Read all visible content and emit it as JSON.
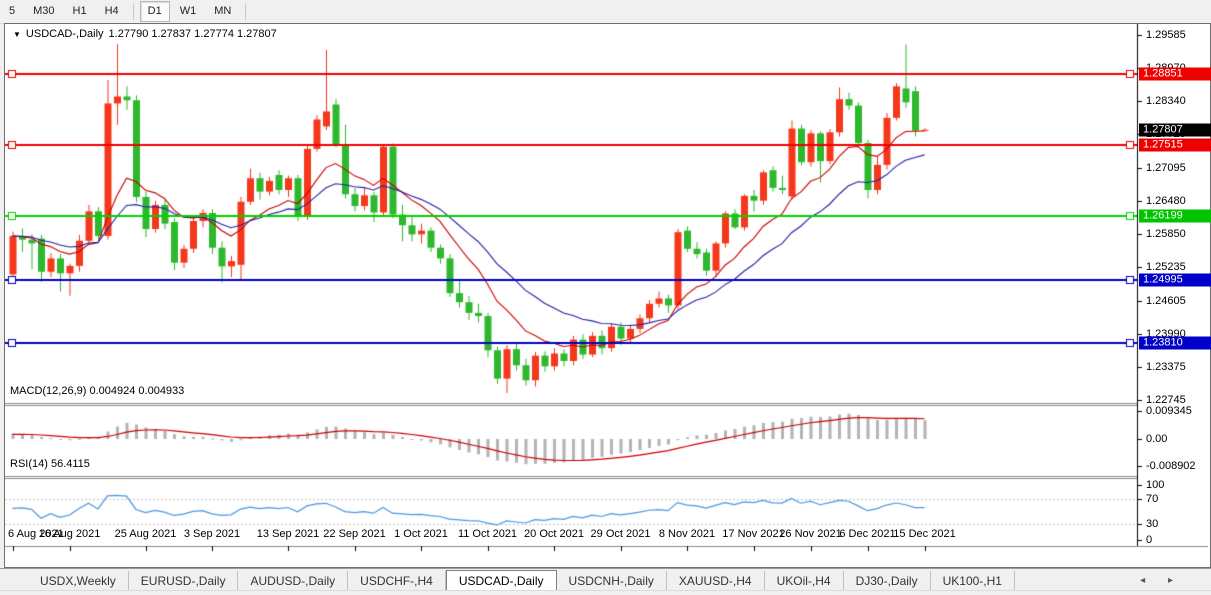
{
  "toolbar": {
    "timeframes": [
      "5",
      "M30",
      "H1",
      "H4",
      "D1",
      "W1",
      "MN"
    ],
    "active_timeframe": "D1"
  },
  "chart": {
    "title_symbol": "USDCAD-,Daily",
    "title_quote": "1.27790 1.27837 1.27774 1.27807",
    "dropdown_icon": "▼"
  },
  "macd": {
    "label_text": "MACD(12,26,9) 0.004924 0.004933",
    "ticks": [
      {
        "text": "0.009345",
        "value": 0.009345
      },
      {
        "text": "0.00",
        "value": 0.0
      },
      {
        "text": "-0.008902",
        "value": -0.008902
      }
    ]
  },
  "rsi": {
    "label_text": "RSI(14) 56.4115",
    "ticks": [
      {
        "text": "100",
        "value": 100
      },
      {
        "text": "70",
        "value": 70
      },
      {
        "text": "30",
        "value": 30
      },
      {
        "text": "0",
        "value": 0
      }
    ],
    "dashed_levels": [
      70,
      30
    ]
  },
  "price_axis": {
    "ticks": [
      "1.29585",
      "1.28970",
      "1.28340",
      "1.27725",
      "1.27095",
      "1.26480",
      "1.25850",
      "1.25235",
      "1.24605",
      "1.23990",
      "1.23375",
      "1.22745"
    ],
    "tags": [
      {
        "text": "1.28851",
        "value": 1.28851,
        "color": "#ee0000"
      },
      {
        "text": "1.27515",
        "value": 1.27515,
        "color": "#ee0000"
      },
      {
        "text": "1.26199",
        "value": 1.26199,
        "color": "#00c400"
      },
      {
        "text": "1.24995",
        "value": 1.24995,
        "color": "#0000c8"
      },
      {
        "text": "1.23810",
        "value": 1.2381,
        "color": "#0000c8"
      },
      {
        "text": "1.27807",
        "value": 1.27807,
        "color": "#000000"
      }
    ]
  },
  "date_axis": {
    "labels": [
      {
        "text": "6 Aug 2021",
        "i": 0
      },
      {
        "text": "16 Aug 2021",
        "i": 6
      },
      {
        "text": "25 Aug 2021",
        "i": 14
      },
      {
        "text": "3 Sep 2021",
        "i": 21
      },
      {
        "text": "13 Sep 2021",
        "i": 29
      },
      {
        "text": "22 Sep 2021",
        "i": 36
      },
      {
        "text": "1 Oct 2021",
        "i": 43
      },
      {
        "text": "11 Oct 2021",
        "i": 50
      },
      {
        "text": "20 Oct 2021",
        "i": 57
      },
      {
        "text": "29 Oct 2021",
        "i": 64
      },
      {
        "text": "8 Nov 2021",
        "i": 71
      },
      {
        "text": "17 Nov 2021",
        "i": 78
      },
      {
        "text": "26 Nov 2021",
        "i": 84
      },
      {
        "text": "6 Dec 2021",
        "i": 90
      },
      {
        "text": "15 Dec 2021",
        "i": 96
      }
    ]
  },
  "tabs": {
    "items": [
      "USDX,Weekly",
      "EURUSD-,Daily",
      "AUDUSD-,Daily",
      "USDCHF-,H4",
      "USDCAD-,Daily",
      "USDCNH-,Daily",
      "XAUUSD-,H4",
      "UKOil-,H4",
      "DJ30-,Daily",
      "UK100-,H1"
    ],
    "active": "USDCAD-,Daily",
    "scroll_left_icon": "◂",
    "scroll_right_icon": "▸"
  },
  "colors": {
    "candle_up": "#f5381c",
    "candle_down": "#2eb82e",
    "hline_red": "#ee0000",
    "hline_green": "#00d300",
    "hline_blue": "#0000c8",
    "ma_fast_red": "#cc0000",
    "ma_slow_blue": "#2222aa",
    "macd_bar": "#b4b4b4",
    "macd_signal": "#cc0000",
    "rsi_line": "#4a97e3",
    "dashed_level": "#c6c6c6",
    "axis_line": "#000000"
  },
  "chart_data": {
    "type": "candlestick",
    "symbol": "USDCAD-",
    "timeframe": "Daily",
    "note": "red body = bullish, green body = bearish; candles as [open,high,low,close]",
    "current_price": 1.27807,
    "hlines": [
      {
        "value": 1.28851,
        "color": "#ee0000"
      },
      {
        "value": 1.27515,
        "color": "#ee0000"
      },
      {
        "value": 1.26199,
        "color": "#00d300"
      },
      {
        "value": 1.24995,
        "color": "#0000c8"
      },
      {
        "value": 1.2381,
        "color": "#0000c8"
      }
    ],
    "price_range_top": 1.29749,
    "price_range_bottom": 1.2271,
    "macd_range": [
      -0.008902,
      0.009345
    ],
    "candles": [
      [
        1.251,
        1.259,
        1.2503,
        1.2582
      ],
      [
        1.2582,
        1.2596,
        1.2552,
        1.2575
      ],
      [
        1.2575,
        1.2585,
        1.252,
        1.2568
      ],
      [
        1.2577,
        1.2584,
        1.2496,
        1.2515
      ],
      [
        1.2515,
        1.255,
        1.2505,
        1.254
      ],
      [
        1.254,
        1.2548,
        1.2478,
        1.2512
      ],
      [
        1.2512,
        1.253,
        1.247,
        1.2526
      ],
      [
        1.2526,
        1.2584,
        1.2515,
        1.2573
      ],
      [
        1.2573,
        1.264,
        1.2565,
        1.2628
      ],
      [
        1.2628,
        1.2636,
        1.2575,
        1.2582
      ],
      [
        1.2582,
        1.2874,
        1.2575,
        1.283
      ],
      [
        1.283,
        1.2941,
        1.279,
        1.2843
      ],
      [
        1.2843,
        1.2862,
        1.2818,
        1.2836
      ],
      [
        1.2836,
        1.2845,
        1.2645,
        1.2655
      ],
      [
        1.2655,
        1.2665,
        1.258,
        1.2595
      ],
      [
        1.2595,
        1.2648,
        1.2588,
        1.264
      ],
      [
        1.264,
        1.265,
        1.2595,
        1.2605
      ],
      [
        1.2608,
        1.2615,
        1.2518,
        1.2532
      ],
      [
        1.2532,
        1.2565,
        1.2522,
        1.2558
      ],
      [
        1.2558,
        1.262,
        1.255,
        1.261
      ],
      [
        1.261,
        1.2632,
        1.2598,
        1.2625
      ],
      [
        1.2625,
        1.2632,
        1.2548,
        1.256
      ],
      [
        1.256,
        1.2572,
        1.2495,
        1.2525
      ],
      [
        1.2525,
        1.2545,
        1.2505,
        1.2535
      ],
      [
        1.2528,
        1.2655,
        1.25,
        1.2646
      ],
      [
        1.2646,
        1.2708,
        1.264,
        1.269
      ],
      [
        1.269,
        1.27,
        1.265,
        1.2665
      ],
      [
        1.2665,
        1.2692,
        1.2658,
        1.2685
      ],
      [
        1.2696,
        1.2705,
        1.266,
        1.2668
      ],
      [
        1.2668,
        1.2695,
        1.2655,
        1.269
      ],
      [
        1.269,
        1.2696,
        1.261,
        1.2618
      ],
      [
        1.2618,
        1.275,
        1.2612,
        1.2745
      ],
      [
        1.2745,
        1.2808,
        1.274,
        1.28
      ],
      [
        1.2787,
        1.293,
        1.278,
        1.2815
      ],
      [
        1.2828,
        1.2838,
        1.2748,
        1.2752
      ],
      [
        1.2752,
        1.279,
        1.2652,
        1.266
      ],
      [
        1.266,
        1.2672,
        1.2628,
        1.2638
      ],
      [
        1.2638,
        1.2672,
        1.263,
        1.2658
      ],
      [
        1.2658,
        1.2665,
        1.2608,
        1.2626
      ],
      [
        1.2626,
        1.2752,
        1.262,
        1.2749
      ],
      [
        1.2749,
        1.2755,
        1.2615,
        1.2622
      ],
      [
        1.2622,
        1.264,
        1.2572,
        1.2602
      ],
      [
        1.2602,
        1.262,
        1.2572,
        1.2585
      ],
      [
        1.2585,
        1.2605,
        1.2568,
        1.2592
      ],
      [
        1.2592,
        1.2598,
        1.2552,
        1.256
      ],
      [
        1.256,
        1.2566,
        1.253,
        1.254
      ],
      [
        1.254,
        1.2548,
        1.2468,
        1.2475
      ],
      [
        1.2475,
        1.25,
        1.2448,
        1.2458
      ],
      [
        1.2458,
        1.247,
        1.2425,
        1.2438
      ],
      [
        1.2438,
        1.2455,
        1.242,
        1.2432
      ],
      [
        1.2432,
        1.2438,
        1.2355,
        1.2368
      ],
      [
        1.2368,
        1.2375,
        1.2305,
        1.2315
      ],
      [
        1.2315,
        1.2378,
        1.2288,
        1.237
      ],
      [
        1.237,
        1.238,
        1.233,
        1.234
      ],
      [
        1.234,
        1.2352,
        1.2302,
        1.2312
      ],
      [
        1.2312,
        1.2365,
        1.23,
        1.2358
      ],
      [
        1.2358,
        1.2366,
        1.2328,
        1.2338
      ],
      [
        1.2338,
        1.2372,
        1.233,
        1.2362
      ],
      [
        1.2362,
        1.237,
        1.2338,
        1.2348
      ],
      [
        1.2348,
        1.2395,
        1.234,
        1.2388
      ],
      [
        1.2388,
        1.2398,
        1.2352,
        1.236
      ],
      [
        1.236,
        1.2402,
        1.2355,
        1.2395
      ],
      [
        1.2395,
        1.2405,
        1.236,
        1.2372
      ],
      [
        1.2372,
        1.2418,
        1.2365,
        1.2412
      ],
      [
        1.2412,
        1.242,
        1.2378,
        1.239
      ],
      [
        1.239,
        1.2416,
        1.2382,
        1.2408
      ],
      [
        1.2408,
        1.2435,
        1.24,
        1.2428
      ],
      [
        1.2428,
        1.2462,
        1.242,
        1.2455
      ],
      [
        1.2455,
        1.2478,
        1.2448,
        1.2465
      ],
      [
        1.2465,
        1.2472,
        1.2438,
        1.2452
      ],
      [
        1.2452,
        1.2595,
        1.2445,
        1.2589
      ],
      [
        1.2592,
        1.26,
        1.2552,
        1.2558
      ],
      [
        1.2558,
        1.257,
        1.254,
        1.2548
      ],
      [
        1.2551,
        1.2558,
        1.2508,
        1.2517
      ],
      [
        1.2517,
        1.2572,
        1.2506,
        1.2568
      ],
      [
        1.2568,
        1.2628,
        1.256,
        1.2624
      ],
      [
        1.2624,
        1.2632,
        1.2595,
        1.2598
      ],
      [
        1.2598,
        1.266,
        1.2592,
        1.2657
      ],
      [
        1.2657,
        1.2668,
        1.2628,
        1.2648
      ],
      [
        1.2648,
        1.2705,
        1.264,
        1.2701
      ],
      [
        1.2705,
        1.2712,
        1.2665,
        1.2672
      ],
      [
        1.2672,
        1.2695,
        1.266,
        1.2668
      ],
      [
        1.2656,
        1.2798,
        1.265,
        1.2783
      ],
      [
        1.2783,
        1.279,
        1.2714,
        1.272
      ],
      [
        1.272,
        1.278,
        1.2712,
        1.2774
      ],
      [
        1.2774,
        1.2778,
        1.2682,
        1.2722
      ],
      [
        1.2722,
        1.2782,
        1.2716,
        1.2776
      ],
      [
        1.2776,
        1.286,
        1.2768,
        1.2838
      ],
      [
        1.2838,
        1.285,
        1.2818,
        1.2826
      ],
      [
        1.2826,
        1.2832,
        1.2748,
        1.2756
      ],
      [
        1.2756,
        1.2762,
        1.2652,
        1.2668
      ],
      [
        1.2668,
        1.2732,
        1.266,
        1.2715
      ],
      [
        1.2715,
        1.2812,
        1.2706,
        1.2803
      ],
      [
        1.2803,
        1.2868,
        1.2798,
        1.2862
      ],
      [
        1.2858,
        1.294,
        1.2822,
        1.2832
      ],
      [
        1.2853,
        1.2862,
        1.2768,
        1.2779
      ],
      [
        1.2779,
        1.27837,
        1.27774,
        1.27807
      ]
    ],
    "ma_fast_period": 10,
    "ma_slow_period": 20,
    "macd_params": [
      12,
      26,
      9
    ],
    "rsi_period": 14
  }
}
